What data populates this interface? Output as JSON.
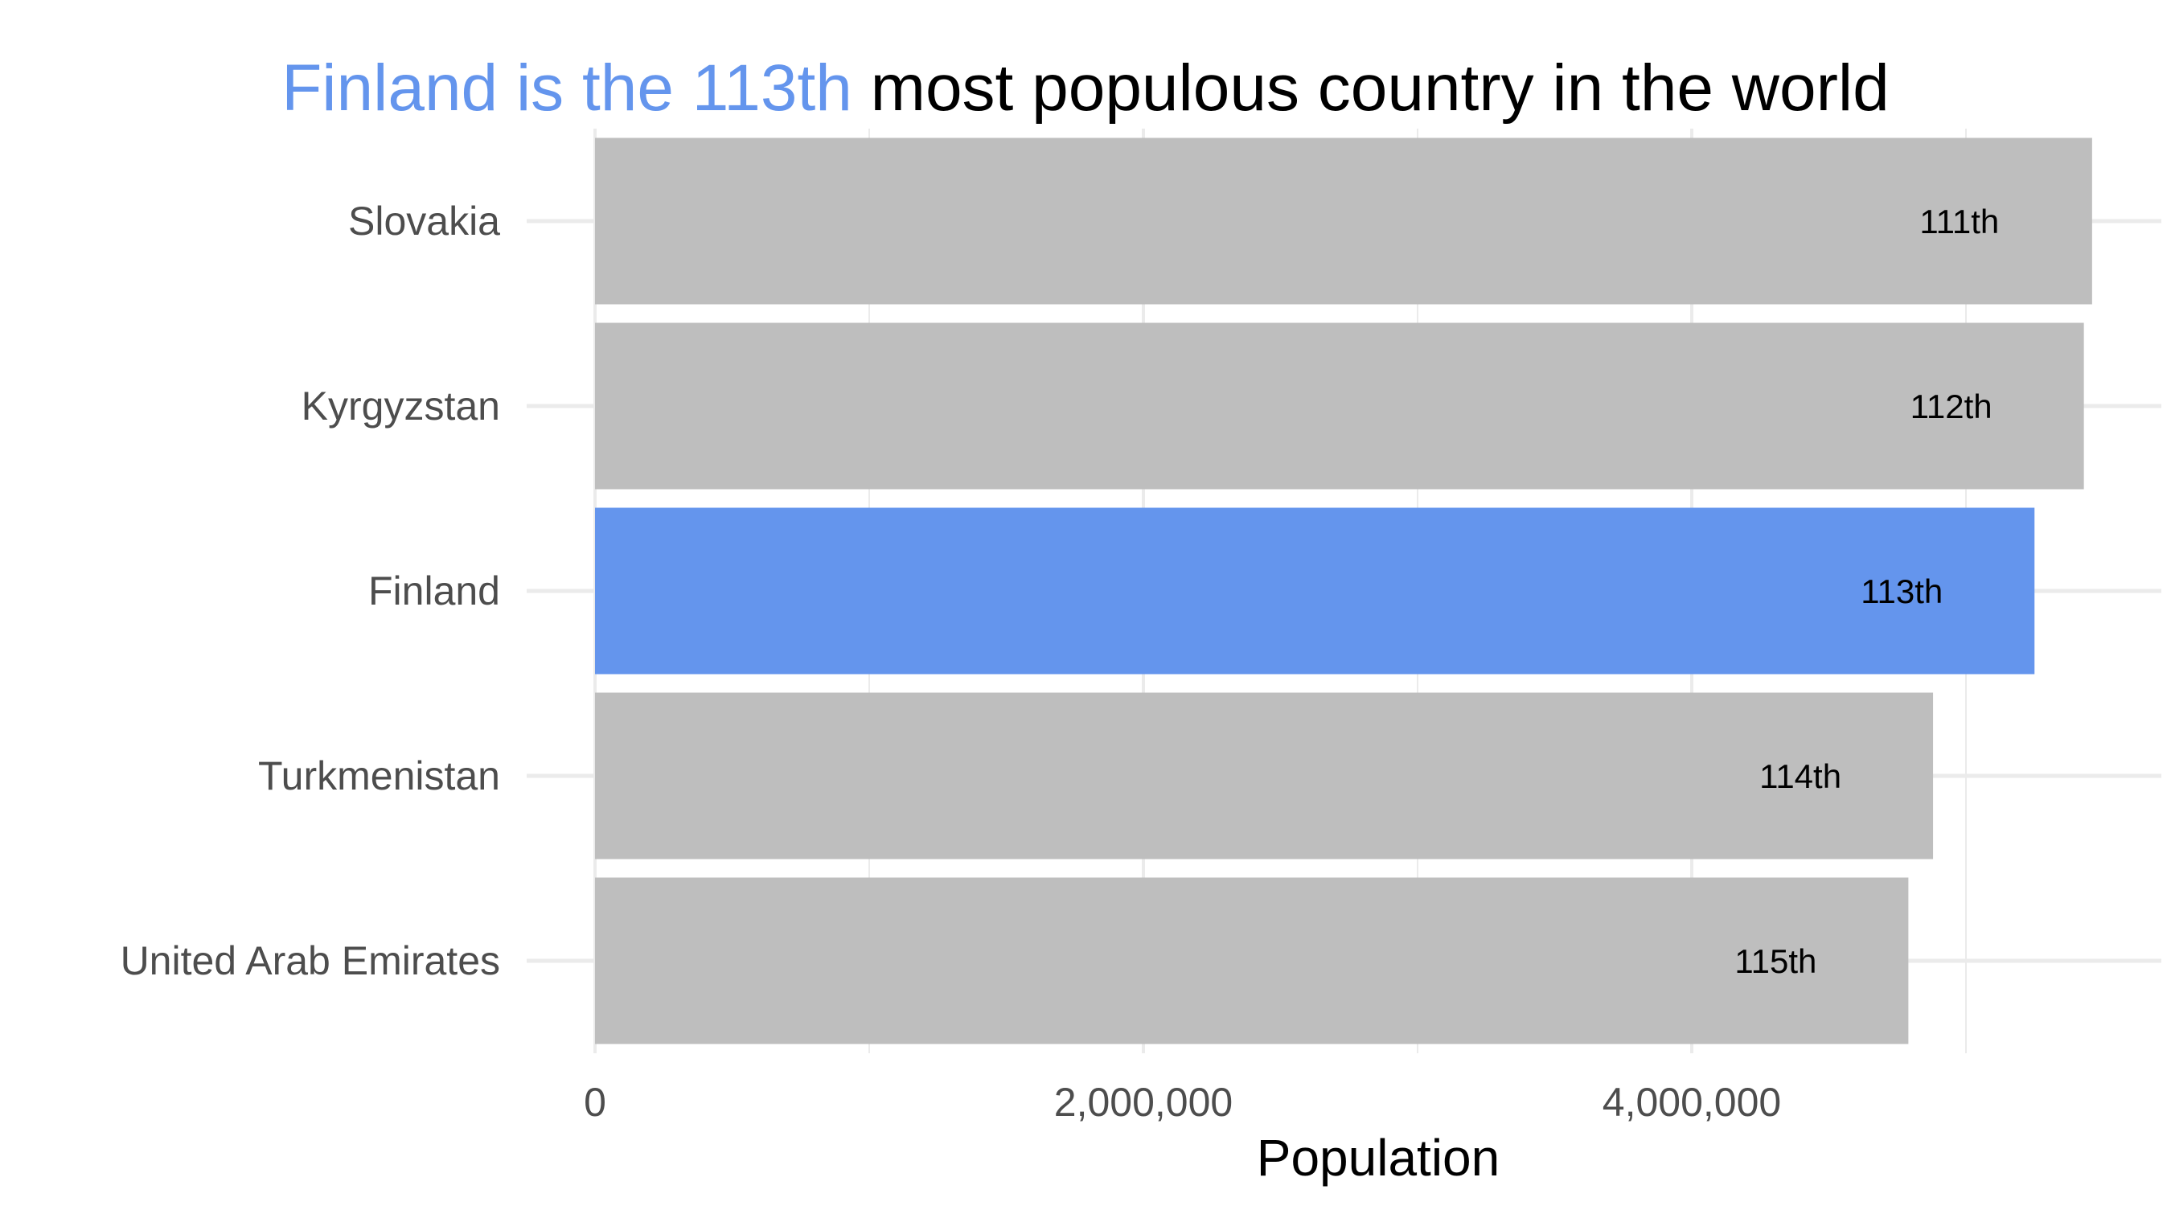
{
  "chart_data": {
    "type": "bar",
    "orientation": "horizontal",
    "title": {
      "highlight": "Finland is the 113th",
      "rest": "most populous country in the world"
    },
    "xlabel": "Population",
    "ylabel": "",
    "categories": [
      "Slovakia",
      "Kyrgyzstan",
      "Finland",
      "Turkmenistan",
      "United Arab Emirates"
    ],
    "values": [
      5460000,
      5430000,
      5250000,
      4880000,
      4790000
    ],
    "bar_labels": [
      "111th",
      "112th",
      "113th",
      "114th",
      "115th"
    ],
    "highlighted_category": "Finland",
    "xlim": [
      0,
      5720000
    ],
    "x_ticks": [
      0,
      2000000,
      4000000
    ],
    "x_tick_labels": [
      "0",
      "2,000,000",
      "4,000,000"
    ],
    "grid": true,
    "colors": {
      "highlight": "#6495ed",
      "default": "#bebebe",
      "grid": "#ebebeb",
      "axis_text": "#4d4d4d"
    }
  }
}
